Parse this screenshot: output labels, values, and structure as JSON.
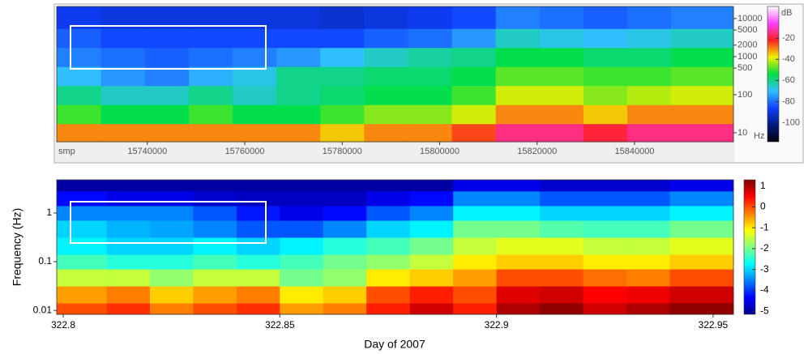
{
  "chart_data": [
    {
      "type": "heatmap",
      "x_label": "smp",
      "y_unit": "Hz",
      "colorbar_label": "dB",
      "x": [
        15726000,
        15735000,
        15744000,
        15753000,
        15762000,
        15771000,
        15780000,
        15789000,
        15798000,
        15807000,
        15816000,
        15825000,
        15834000,
        15843000,
        15852000
      ],
      "y": [
        10,
        30,
        100,
        300,
        1000,
        3000,
        10000
      ],
      "z": [
        [
          -30,
          -30,
          -30,
          -30,
          -30,
          -30,
          -35,
          -30,
          -30,
          -25,
          -15,
          -15,
          -20,
          -15,
          -15
        ],
        [
          -50,
          -55,
          -55,
          -50,
          -55,
          -55,
          -50,
          -45,
          -45,
          -40,
          -30,
          -30,
          -35,
          -30,
          -30
        ],
        [
          -60,
          -65,
          -65,
          -60,
          -65,
          -60,
          -58,
          -55,
          -55,
          -50,
          -40,
          -40,
          -45,
          -42,
          -40
        ],
        [
          -70,
          -75,
          -78,
          -72,
          -68,
          -60,
          -60,
          -58,
          -58,
          -55,
          -48,
          -48,
          -50,
          -50,
          -48
        ],
        [
          -78,
          -80,
          -82,
          -80,
          -78,
          -75,
          -70,
          -65,
          -62,
          -60,
          -55,
          -55,
          -58,
          -58,
          -55
        ],
        [
          -82,
          -85,
          -85,
          -85,
          -85,
          -85,
          -85,
          -82,
          -80,
          -75,
          -65,
          -68,
          -70,
          -68,
          -65
        ],
        [
          -88,
          -90,
          -90,
          -90,
          -90,
          -90,
          -92,
          -90,
          -88,
          -85,
          -78,
          -80,
          -82,
          -80,
          -78
        ]
      ],
      "xlim": [
        15721400,
        15860300
      ],
      "xticks": [
        15740000,
        15760000,
        15780000,
        15800000,
        15820000,
        15840000
      ],
      "ylim": [
        5.8,
        20800
      ],
      "y_log": true,
      "yticks": [
        10,
        100,
        500,
        1000,
        2000,
        5000,
        10000
      ],
      "clim": [
        -118,
        10
      ],
      "cticks": [
        -20,
        -40,
        -60,
        -80,
        -100
      ],
      "colormap": [
        "#000010",
        "#001a80",
        "#1040ff",
        "#30c0ff",
        "#00e040",
        "#f0f000",
        "#ff2020",
        "#ff40ff",
        "#ffffff"
      ]
    },
    {
      "type": "heatmap",
      "y_label": "Frequency (Hz)",
      "x_label": "Day of 2007",
      "x": [
        322.805,
        322.815,
        322.825,
        322.835,
        322.845,
        322.855,
        322.865,
        322.875,
        322.885,
        322.895,
        322.905,
        322.915,
        322.925,
        322.935,
        322.945
      ],
      "y": [
        0.01,
        0.02,
        0.05,
        0.1,
        0.2,
        0.5,
        1,
        2,
        4
      ],
      "z": [
        [
          0,
          0.2,
          -0.3,
          0,
          0.2,
          -0.5,
          -0.3,
          0.3,
          0.8,
          0.3,
          1,
          1.2,
          0.8,
          1,
          1.2
        ],
        [
          -0.5,
          -0.3,
          -0.8,
          -0.5,
          -0.3,
          -1,
          -0.8,
          0,
          0.3,
          0,
          0.7,
          0.8,
          0.5,
          0.6,
          0.8
        ],
        [
          -1.5,
          -1.5,
          -1.8,
          -1.5,
          -1.5,
          -2,
          -1.8,
          -1,
          -0.8,
          -0.5,
          0,
          0,
          -0.2,
          -0.3,
          0
        ],
        [
          -2.3,
          -2.5,
          -2.5,
          -2.3,
          -2.5,
          -2.3,
          -2,
          -1.8,
          -1.5,
          -1,
          -0.8,
          -0.8,
          -1,
          -1,
          -0.8
        ],
        [
          -2.8,
          -3,
          -3,
          -2.8,
          -3,
          -2.8,
          -2.5,
          -2.3,
          -2,
          -1.5,
          -1.3,
          -1.3,
          -1.5,
          -1.5,
          -1.3
        ],
        [
          -3,
          -3.2,
          -3.3,
          -3.5,
          -3.8,
          -3.8,
          -3.5,
          -3,
          -2.8,
          -2,
          -2,
          -2.2,
          -2.3,
          -2.3,
          -2
        ],
        [
          -3.5,
          -3.5,
          -3.5,
          -3.8,
          -4.2,
          -4.5,
          -4.3,
          -3.8,
          -3.5,
          -2.8,
          -2.8,
          -3,
          -3,
          -3,
          -2.8
        ],
        [
          -4.3,
          -4.5,
          -4.5,
          -4.7,
          -4.8,
          -4.8,
          -4.8,
          -4.5,
          -4.3,
          -3.5,
          -3.5,
          -3.8,
          -3.8,
          -3.8,
          -3.5
        ],
        [
          -5,
          -5,
          -5,
          -5,
          -5,
          -5,
          -5,
          -5,
          -5,
          -4.5,
          -4.5,
          -4.7,
          -4.7,
          -4.7,
          -4.5
        ]
      ],
      "xlim": [
        322.7985,
        322.9547
      ],
      "xticks": [
        322.8,
        322.85,
        322.9,
        322.95
      ],
      "ylim": [
        0.0083,
        4.8
      ],
      "y_log": true,
      "yticks": [
        0.01,
        0.1,
        1
      ],
      "clim": [
        -5.15,
        1.3
      ],
      "cticks": [
        1,
        0,
        -1,
        -2,
        -3,
        -4,
        -5
      ],
      "colormap": [
        "#00008f",
        "#0000ff",
        "#0080ff",
        "#00ffff",
        "#80ff80",
        "#ffff00",
        "#ff8000",
        "#ff0000",
        "#800000"
      ]
    }
  ]
}
